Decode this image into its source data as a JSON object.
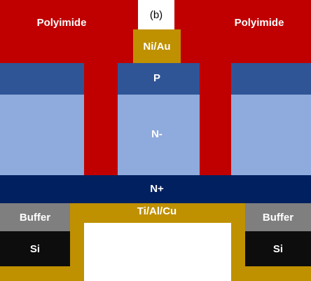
{
  "panel_label": "(b)",
  "layers": {
    "polyimide_left": "Polyimide",
    "polyimide_right": "Polyimide",
    "contact_top": "Ni/Au",
    "p": "P",
    "n_minus": "N-",
    "n_plus": "N+",
    "contact_bottom": "Ti/Al/Cu",
    "buffer_left": "Buffer",
    "buffer_right": "Buffer",
    "si_left": "Si",
    "si_right": "Si"
  }
}
